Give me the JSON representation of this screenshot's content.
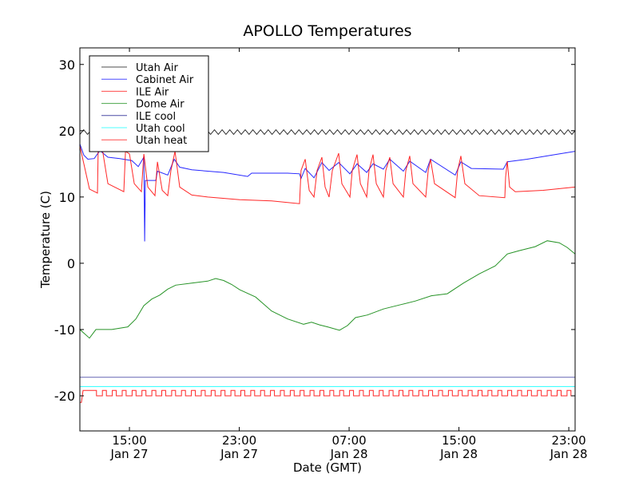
{
  "chart_data": {
    "type": "line",
    "title": "APOLLO Temperatures",
    "xlabel": "Date (GMT)",
    "ylabel": "Temperature (C)",
    "x_unit": "hours since Jan 27 00:00 GMT",
    "xlim": [
      11.39,
      47.46
    ],
    "ylim": [
      -25.3,
      32.5
    ],
    "grid": false,
    "legend_placement": "upper-left",
    "yticks": [
      {
        "v": -20,
        "label": "-20"
      },
      {
        "v": -10,
        "label": "-10"
      },
      {
        "v": 0,
        "label": "0"
      },
      {
        "v": 10,
        "label": "10"
      },
      {
        "v": 20,
        "label": "20"
      },
      {
        "v": 30,
        "label": "30"
      }
    ],
    "xticks": [
      {
        "v": 15,
        "time": "15:00",
        "date": "Jan 27"
      },
      {
        "v": 23,
        "time": "23:00",
        "date": "Jan 27"
      },
      {
        "v": 31,
        "time": "07:00",
        "date": "Jan 28"
      },
      {
        "v": 39,
        "time": "15:00",
        "date": "Jan 28"
      },
      {
        "v": 47,
        "time": "23:00",
        "date": "Jan 28"
      }
    ],
    "series": [
      {
        "name": "Utah Air",
        "color": "#000000",
        "kind": "oscillation",
        "mean": 19.8,
        "amplitude": 0.35,
        "period": 0.56
      },
      {
        "name": "Cabinet Air",
        "color": "#0000ff",
        "points": [
          [
            11.39,
            18
          ],
          [
            11.68,
            16.3
          ],
          [
            11.97,
            15.7
          ],
          [
            12.44,
            15.8
          ],
          [
            12.67,
            16.5
          ],
          [
            12.85,
            17
          ],
          [
            13.43,
            16
          ],
          [
            14.3,
            15.8
          ],
          [
            15.17,
            15.5
          ],
          [
            15.64,
            14.6
          ],
          [
            16.05,
            16
          ],
          [
            16.11,
            3.3
          ],
          [
            16.16,
            12.5
          ],
          [
            16.92,
            12.5
          ],
          [
            17.04,
            13.9
          ],
          [
            17.79,
            13.3
          ],
          [
            18.26,
            15.7
          ],
          [
            18.66,
            14.5
          ],
          [
            19.54,
            14.1
          ],
          [
            21.86,
            13.7
          ],
          [
            23.61,
            13.1
          ],
          [
            23.9,
            13.6
          ],
          [
            26.52,
            13.6
          ],
          [
            27.39,
            13.5
          ],
          [
            27.5,
            12.8
          ],
          [
            27.8,
            14.3
          ],
          [
            28.44,
            12.9
          ],
          [
            29.02,
            15.2
          ],
          [
            29.54,
            14.0
          ],
          [
            30.24,
            15.2
          ],
          [
            31.06,
            13.5
          ],
          [
            31.58,
            15.0
          ],
          [
            32.28,
            13.7
          ],
          [
            32.74,
            15.0
          ],
          [
            33.5,
            14.2
          ],
          [
            33.96,
            15.7
          ],
          [
            34.95,
            13.9
          ],
          [
            35.42,
            15.4
          ],
          [
            36.58,
            13.7
          ],
          [
            36.93,
            15.7
          ],
          [
            38.73,
            13.3
          ],
          [
            39.14,
            15.3
          ],
          [
            39.9,
            14.3
          ],
          [
            42.23,
            14.2
          ],
          [
            42.52,
            15.3
          ],
          [
            43.97,
            15.7
          ],
          [
            45.72,
            16.3
          ],
          [
            47.46,
            16.9
          ]
        ]
      },
      {
        "name": "ILE Air",
        "color": "#ff0000",
        "points": [
          [
            11.39,
            17.7
          ],
          [
            12.09,
            11.2
          ],
          [
            12.67,
            10.6
          ],
          [
            12.73,
            17.7
          ],
          [
            13.02,
            17.3
          ],
          [
            13.43,
            12
          ],
          [
            14.59,
            10.8
          ],
          [
            14.71,
            16.9
          ],
          [
            15.0,
            16.5
          ],
          [
            15.35,
            12
          ],
          [
            15.87,
            10.8
          ],
          [
            16.05,
            16.5
          ],
          [
            16.34,
            11.5
          ],
          [
            16.86,
            10.2
          ],
          [
            17.04,
            15.3
          ],
          [
            17.39,
            11
          ],
          [
            17.79,
            10.2
          ],
          [
            18.02,
            14
          ],
          [
            18.32,
            16.9
          ],
          [
            18.66,
            11.5
          ],
          [
            19.54,
            10.3
          ],
          [
            20.7,
            10
          ],
          [
            23.03,
            9.6
          ],
          [
            25.35,
            9.4
          ],
          [
            27.39,
            9.0
          ],
          [
            27.5,
            14
          ],
          [
            27.8,
            15.7
          ],
          [
            28.09,
            11
          ],
          [
            28.44,
            10
          ],
          [
            28.67,
            14
          ],
          [
            29.02,
            16
          ],
          [
            29.25,
            11.5
          ],
          [
            29.54,
            10
          ],
          [
            29.78,
            14
          ],
          [
            30.24,
            16.6
          ],
          [
            30.47,
            12
          ],
          [
            31.06,
            10
          ],
          [
            31.23,
            14
          ],
          [
            31.58,
            16.4
          ],
          [
            31.82,
            12
          ],
          [
            32.28,
            10
          ],
          [
            32.45,
            14
          ],
          [
            32.74,
            16.4
          ],
          [
            32.98,
            12
          ],
          [
            33.5,
            10
          ],
          [
            33.67,
            14
          ],
          [
            33.96,
            16
          ],
          [
            34.2,
            12
          ],
          [
            34.95,
            10
          ],
          [
            35.13,
            14
          ],
          [
            35.42,
            16.2
          ],
          [
            35.65,
            12
          ],
          [
            36.58,
            10
          ],
          [
            36.76,
            14
          ],
          [
            36.93,
            15.7
          ],
          [
            37.22,
            12
          ],
          [
            38.73,
            9.9
          ],
          [
            38.91,
            14
          ],
          [
            39.14,
            16.2
          ],
          [
            39.43,
            12
          ],
          [
            40.48,
            10.2
          ],
          [
            42.34,
            9.9
          ],
          [
            42.4,
            13
          ],
          [
            42.52,
            15.4
          ],
          [
            42.69,
            11.5
          ],
          [
            43.1,
            10.8
          ],
          [
            45.13,
            11
          ],
          [
            47.46,
            11.5
          ]
        ]
      },
      {
        "name": "Dome Air",
        "color": "#008000",
        "points": [
          [
            11.39,
            -10
          ],
          [
            12.09,
            -11.3
          ],
          [
            12.56,
            -10
          ],
          [
            13.72,
            -10
          ],
          [
            14.88,
            -9.6
          ],
          [
            15.47,
            -8.4
          ],
          [
            16.05,
            -6.4
          ],
          [
            16.63,
            -5.4
          ],
          [
            17.21,
            -4.8
          ],
          [
            17.79,
            -3.9
          ],
          [
            18.37,
            -3.3
          ],
          [
            19.54,
            -3.0
          ],
          [
            20.7,
            -2.7
          ],
          [
            21.28,
            -2.3
          ],
          [
            21.86,
            -2.6
          ],
          [
            22.45,
            -3.2
          ],
          [
            23.03,
            -4.0
          ],
          [
            24.19,
            -5.1
          ],
          [
            25.35,
            -7.2
          ],
          [
            26.52,
            -8.4
          ],
          [
            27.68,
            -9.2
          ],
          [
            28.26,
            -8.9
          ],
          [
            28.85,
            -9.3
          ],
          [
            29.43,
            -9.6
          ],
          [
            30.3,
            -10.1
          ],
          [
            30.88,
            -9.4
          ],
          [
            31.46,
            -8.2
          ],
          [
            32.34,
            -7.8
          ],
          [
            33.5,
            -6.9
          ],
          [
            34.66,
            -6.3
          ],
          [
            35.83,
            -5.7
          ],
          [
            36.99,
            -4.9
          ],
          [
            38.15,
            -4.6
          ],
          [
            39.32,
            -3.0
          ],
          [
            40.48,
            -1.6
          ],
          [
            41.64,
            -0.4
          ],
          [
            42.52,
            1.4
          ],
          [
            43.39,
            1.9
          ],
          [
            44.55,
            2.5
          ],
          [
            45.43,
            3.4
          ],
          [
            46.3,
            3.1
          ],
          [
            46.88,
            2.4
          ],
          [
            47.46,
            1.4
          ]
        ]
      },
      {
        "name": "ILE cool",
        "color": "#000080",
        "points": [
          [
            11.39,
            -17.2
          ],
          [
            47.46,
            -17.2
          ]
        ]
      },
      {
        "name": "Utah cool",
        "color": "#00ffff",
        "points": [
          [
            11.39,
            -18.6
          ],
          [
            47.46,
            -18.6
          ]
        ]
      },
      {
        "name": "Utah heat",
        "color": "#ff0000",
        "kind": "square",
        "start_points": [
          [
            11.39,
            -21
          ],
          [
            11.5,
            -21
          ],
          [
            11.62,
            -19.2
          ],
          [
            12.6,
            -19.2
          ]
        ],
        "low": -20,
        "high": -19.2,
        "period": 0.72,
        "duty": 0.6,
        "start": 12.6
      }
    ]
  }
}
